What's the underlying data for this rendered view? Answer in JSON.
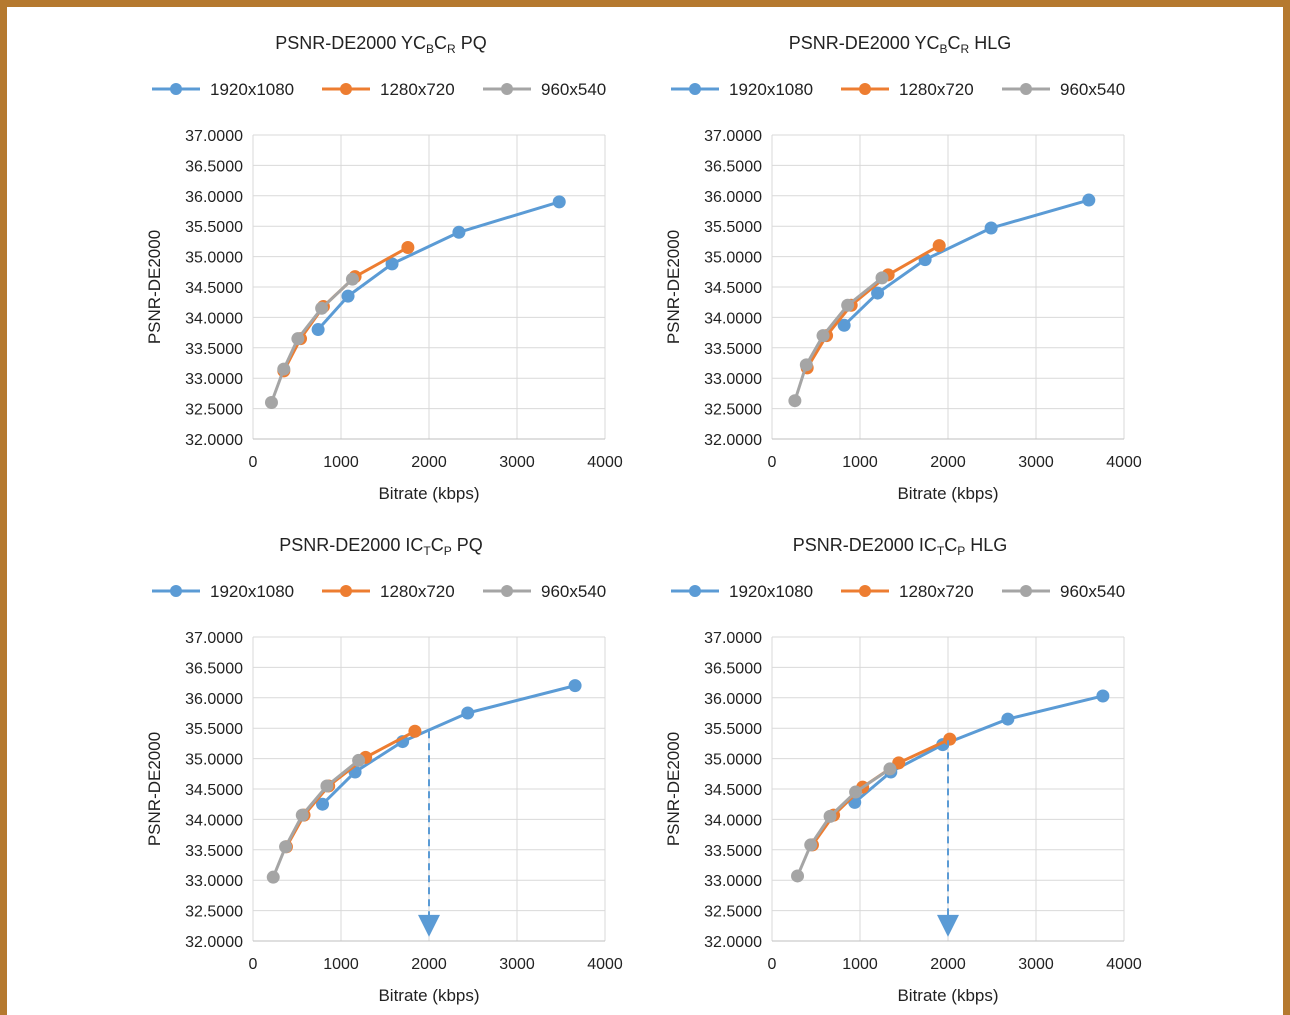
{
  "charts": [
    {
      "title_parts": [
        {
          "t": "PSNR-DE2000 YC",
          "s": "n"
        },
        {
          "t": "B",
          "s": "sub"
        },
        {
          "t": "C",
          "s": "n"
        },
        {
          "t": "R",
          "s": "sub"
        },
        {
          "t": " PQ",
          "s": "n"
        }
      ]
    },
    {
      "title_parts": [
        {
          "t": "PSNR-DE2000 YC",
          "s": "n"
        },
        {
          "t": "B",
          "s": "sub"
        },
        {
          "t": "C",
          "s": "n"
        },
        {
          "t": "R",
          "s": "sub"
        },
        {
          "t": " HLG",
          "s": "n"
        }
      ]
    },
    {
      "title_parts": [
        {
          "t": "PSNR-DE2000 IC",
          "s": "n"
        },
        {
          "t": "T",
          "s": "sub"
        },
        {
          "t": "C",
          "s": "n"
        },
        {
          "t": "P",
          "s": "sub"
        },
        {
          "t": " PQ",
          "s": "n"
        }
      ]
    },
    {
      "title_parts": [
        {
          "t": "PSNR-DE2000 IC",
          "s": "n"
        },
        {
          "t": "T",
          "s": "sub"
        },
        {
          "t": "C",
          "s": "n"
        },
        {
          "t": "P",
          "s": "sub"
        },
        {
          "t": " HLG",
          "s": "n"
        }
      ]
    }
  ],
  "chart_data": [
    {
      "type": "line",
      "title": "PSNR-DE2000 YCBCR PQ",
      "xlabel": "Bitrate (kbps)",
      "ylabel": "PSNR-DE2000",
      "xlim": [
        0,
        4000
      ],
      "ylim": [
        32.0,
        37.0
      ],
      "xticks": [
        "0",
        "1000",
        "2000",
        "3000",
        "4000"
      ],
      "yticks": [
        "32.0000",
        "32.5000",
        "33.0000",
        "33.5000",
        "34.0000",
        "34.5000",
        "35.0000",
        "35.5000",
        "36.0000",
        "36.5000",
        "37.0000"
      ],
      "grid": true,
      "legend": "top",
      "series": [
        {
          "name": "1920x1080",
          "color": "#5b9bd5",
          "x": [
            740,
            1080,
            1580,
            2340,
            3480
          ],
          "y": [
            33.8,
            34.35,
            34.88,
            35.4,
            35.9
          ]
        },
        {
          "name": "1280x720",
          "color": "#ed7d31",
          "x": [
            350,
            540,
            800,
            1160,
            1760
          ],
          "y": [
            33.12,
            33.65,
            34.18,
            34.67,
            35.15
          ]
        },
        {
          "name": "960x540",
          "color": "#a5a5a5",
          "x": [
            210,
            350,
            510,
            780,
            1130
          ],
          "y": [
            32.6,
            33.15,
            33.65,
            34.15,
            34.63
          ]
        }
      ]
    },
    {
      "type": "line",
      "title": "PSNR-DE2000 YCBCR HLG",
      "xlabel": "Bitrate (kbps)",
      "ylabel": "PSNR-DE2000",
      "xlim": [
        0,
        4000
      ],
      "ylim": [
        32.0,
        37.0
      ],
      "xticks": [
        "0",
        "1000",
        "2000",
        "3000",
        "4000"
      ],
      "yticks": [
        "32.0000",
        "32.5000",
        "33.0000",
        "33.5000",
        "34.0000",
        "34.5000",
        "35.0000",
        "35.5000",
        "36.0000",
        "36.5000",
        "37.0000"
      ],
      "grid": true,
      "legend": "top",
      "series": [
        {
          "name": "1920x1080",
          "color": "#5b9bd5",
          "x": [
            820,
            1200,
            1740,
            2490,
            3600
          ],
          "y": [
            33.87,
            34.4,
            34.95,
            35.47,
            35.93
          ]
        },
        {
          "name": "1280x720",
          "color": "#ed7d31",
          "x": [
            400,
            620,
            900,
            1320,
            1900
          ],
          "y": [
            33.17,
            33.7,
            34.2,
            34.7,
            35.18
          ]
        },
        {
          "name": "960x540",
          "color": "#a5a5a5",
          "x": [
            260,
            390,
            580,
            860,
            1250
          ],
          "y": [
            32.63,
            33.22,
            33.7,
            34.2,
            34.65
          ]
        }
      ]
    },
    {
      "type": "line",
      "title": "PSNR-DE2000 ICTCP PQ",
      "xlabel": "Bitrate (kbps)",
      "ylabel": "PSNR-DE2000",
      "xlim": [
        0,
        4000
      ],
      "ylim": [
        32.0,
        37.0
      ],
      "xticks": [
        "0",
        "1000",
        "2000",
        "3000",
        "4000"
      ],
      "yticks": [
        "32.0000",
        "32.5000",
        "33.0000",
        "33.5000",
        "34.0000",
        "34.5000",
        "35.0000",
        "35.5000",
        "36.0000",
        "36.5000",
        "37.0000"
      ],
      "grid": true,
      "legend": "top",
      "series": [
        {
          "name": "1920x1080",
          "color": "#5b9bd5",
          "x": [
            790,
            1160,
            1700,
            2440,
            3660
          ],
          "y": [
            34.25,
            34.78,
            35.28,
            35.75,
            36.2
          ]
        },
        {
          "name": "1280x720",
          "color": "#ed7d31",
          "x": [
            380,
            580,
            860,
            1280,
            1840
          ],
          "y": [
            33.55,
            34.07,
            34.55,
            35.02,
            35.45
          ]
        },
        {
          "name": "960x540",
          "color": "#a5a5a5",
          "x": [
            230,
            370,
            560,
            840,
            1200
          ],
          "y": [
            33.05,
            33.55,
            34.07,
            34.55,
            34.97
          ]
        }
      ],
      "annotations": [
        {
          "type": "dashed-arrow",
          "x": 2000,
          "y_from": 35.45,
          "y_to": 32.1
        }
      ]
    },
    {
      "type": "line",
      "title": "PSNR-DE2000 ICTCP HLG",
      "xlabel": "Bitrate (kbps)",
      "ylabel": "PSNR-DE2000",
      "xlim": [
        0,
        4000
      ],
      "ylim": [
        32.0,
        37.0
      ],
      "xticks": [
        "0",
        "1000",
        "2000",
        "3000",
        "4000"
      ],
      "yticks": [
        "32.0000",
        "32.5000",
        "33.0000",
        "33.5000",
        "34.0000",
        "34.5000",
        "35.0000",
        "35.5000",
        "36.0000",
        "36.5000",
        "37.0000"
      ],
      "grid": true,
      "legend": "top",
      "series": [
        {
          "name": "1920x1080",
          "color": "#5b9bd5",
          "x": [
            940,
            1350,
            1940,
            2680,
            3760
          ],
          "y": [
            34.28,
            34.78,
            35.23,
            35.65,
            36.03
          ]
        },
        {
          "name": "1280x720",
          "color": "#ed7d31",
          "x": [
            460,
            700,
            1030,
            1440,
            2020
          ],
          "y": [
            33.58,
            34.07,
            34.53,
            34.93,
            35.32
          ]
        },
        {
          "name": "960x540",
          "color": "#a5a5a5",
          "x": [
            290,
            440,
            660,
            950,
            1340
          ],
          "y": [
            33.07,
            33.58,
            34.05,
            34.45,
            34.83
          ]
        }
      ],
      "annotations": [
        {
          "type": "dashed-arrow",
          "x": 2000,
          "y_from": 35.3,
          "y_to": 32.1
        }
      ]
    }
  ]
}
